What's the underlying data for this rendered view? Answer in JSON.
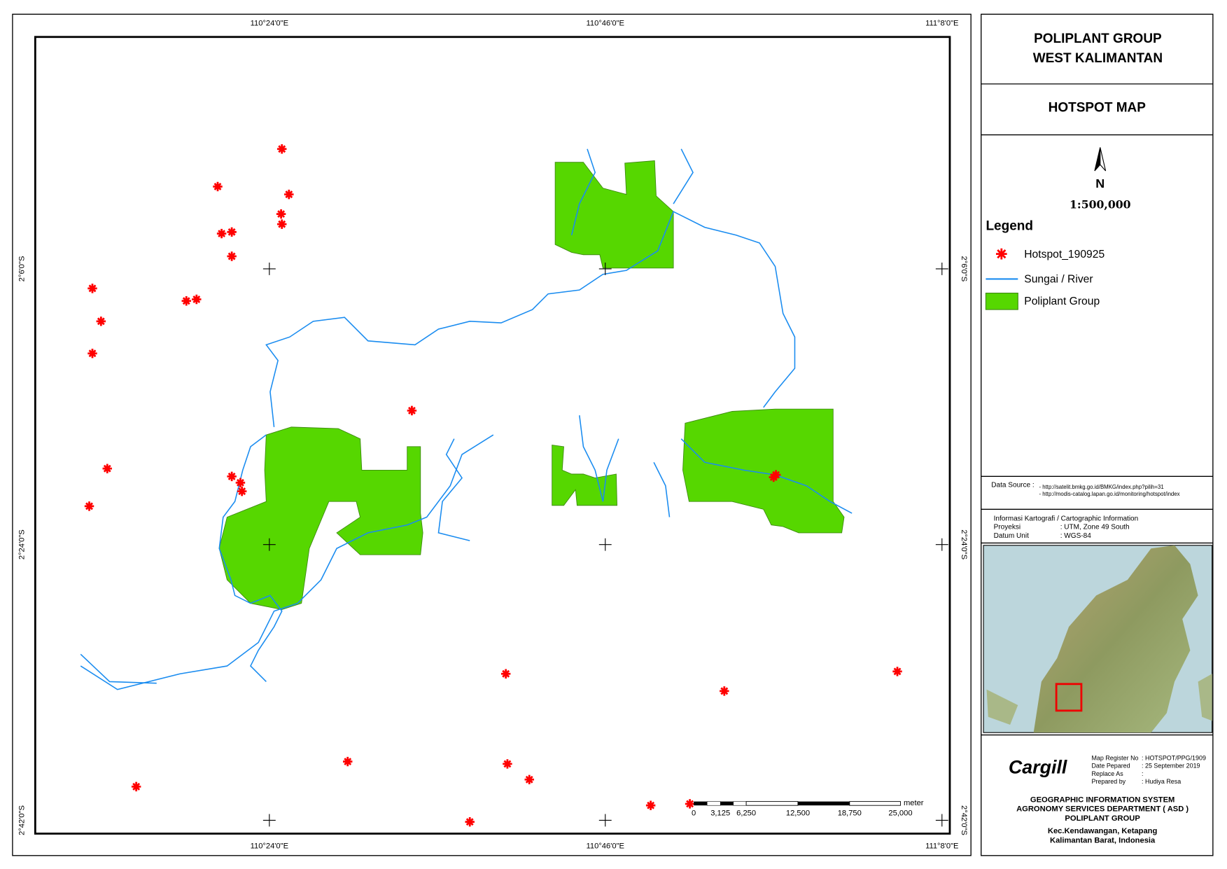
{
  "map": {
    "lon_labels": [
      "110°24'0\"E",
      "110°46'0\"E",
      "111°8'0\"E"
    ],
    "lat_labels": [
      "2°6'0\"S",
      "2°24'0\"S",
      "2°42'0\"S"
    ],
    "scale_bar": {
      "unit": "meter",
      "labels": [
        "0",
        "3,125",
        "6,250",
        "12,500",
        "18,750",
        "25,000"
      ]
    }
  },
  "panel": {
    "title": [
      "POLIPLANT GROUP",
      "WEST KALIMANTAN"
    ],
    "subtitle": "HOTSPOT MAP",
    "north": "N",
    "scale": "1:500,000",
    "legend": {
      "title": "Legend",
      "items": [
        "Hotspot_190925",
        "Sungai / River",
        "Poliplant Group"
      ]
    },
    "data_source": {
      "label": "Data Source :",
      "lines": [
        "- http://satelit.bmkg.go.id/BMKG/index.php?pilih=31",
        "- http://modis-catalog.lapan.go.id/monitoring/hotspot/index"
      ]
    },
    "cartographic": {
      "title": "Informasi Kartografi / Cartographic Information",
      "rows": [
        [
          "Proyeksi",
          ": UTM, Zone 49 South"
        ],
        [
          "Datum Unit",
          ": WGS-84"
        ]
      ]
    },
    "logo": "Cargill",
    "register": [
      [
        "Map Register No",
        ": HOTSPOT/PPG/1909"
      ],
      [
        "Date Pepared",
        ": 25 September 2019"
      ],
      [
        "Replace As",
        ":"
      ],
      [
        "Prepared by",
        ": Hudiya Resa"
      ]
    ],
    "footer": [
      "GEOGRAPHIC INFORMATION SYSTEM",
      "AGRONOMY SERVICES DEPARTMENT ( ASD )",
      "POLIPLANT GROUP",
      "Kec.Kendawangan, Ketapang",
      "Kalimantan Barat, Indonesia"
    ]
  }
}
